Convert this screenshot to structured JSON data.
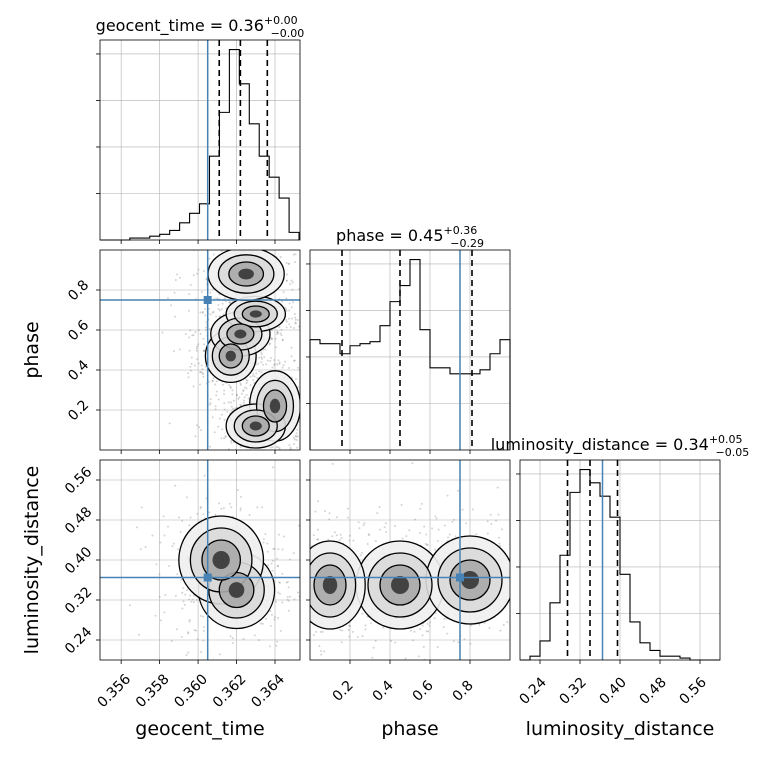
{
  "colors": {
    "truth": "#4682b4",
    "hist": "#000000",
    "grid": "#b0b0b0",
    "points": "#808080"
  },
  "chart_data": [
    {
      "type": "histogram",
      "parameter": "geocent_time",
      "title": {
        "prefix": "geocent_time = 0.36",
        "sup": "+0.00",
        "sub": "−0.00"
      },
      "xlim": [
        0.3549,
        0.3653
      ],
      "xticks": [
        0.356,
        0.358,
        0.36,
        0.362,
        0.364
      ],
      "xtick_labels": [
        "0.356",
        "0.358",
        "0.360",
        "0.362",
        "0.364"
      ],
      "xlabel": "geocent_time",
      "bin_edges": [
        0.3549,
        0.355418,
        0.355935,
        0.356453,
        0.35697,
        0.357488,
        0.358005,
        0.358523,
        0.35904,
        0.359558,
        0.360075,
        0.360593,
        0.36111,
        0.361628,
        0.362145,
        0.362663,
        0.36318,
        0.363698,
        0.364215,
        0.364733,
        0.36525
      ],
      "counts": [
        0,
        0,
        0,
        1,
        1,
        2,
        3,
        5,
        9,
        14,
        19,
        44,
        67,
        100,
        82,
        61,
        44,
        33,
        22,
        4
      ],
      "quantiles": [
        0.3611,
        0.3622,
        0.3636
      ],
      "truth": 0.3605
    },
    {
      "type": "histogram",
      "parameter": "phase",
      "title": {
        "prefix": "phase = 0.45",
        "sup": "+0.36",
        "sub": "−0.29"
      },
      "xlim": [
        0.0,
        1.0
      ],
      "xticks": [
        0.2,
        0.4,
        0.6,
        0.8
      ],
      "xtick_labels": [
        "0.2",
        "0.4",
        "0.6",
        "0.8"
      ],
      "xlabel": "phase",
      "bin_edges": [
        0.0,
        0.05,
        0.1,
        0.15,
        0.2,
        0.25,
        0.3,
        0.35,
        0.4,
        0.45,
        0.5,
        0.55,
        0.6,
        0.65,
        0.7,
        0.75,
        0.8,
        0.85,
        0.9,
        0.95,
        1.0
      ],
      "counts": [
        55,
        53,
        53,
        48,
        52,
        53,
        54,
        62,
        74,
        82,
        95,
        60,
        41,
        41,
        38,
        38,
        38,
        40,
        48,
        55
      ],
      "quantiles": [
        0.16,
        0.45,
        0.81
      ],
      "truth": 0.75
    },
    {
      "type": "histogram",
      "parameter": "luminosity_distance",
      "title": {
        "prefix": "luminosity_distance = 0.34",
        "sup": "+0.05",
        "sub": "−0.05"
      },
      "xlim": [
        0.2,
        0.6
      ],
      "xticks": [
        0.24,
        0.32,
        0.4,
        0.48,
        0.56
      ],
      "xtick_labels": [
        "0.24",
        "0.32",
        "0.40",
        "0.48",
        "0.56"
      ],
      "xlabel": "luminosity_distance",
      "bin_edges": [
        0.2,
        0.22,
        0.24,
        0.26,
        0.28,
        0.3,
        0.32,
        0.34,
        0.36,
        0.38,
        0.4,
        0.42,
        0.44,
        0.46,
        0.48,
        0.5,
        0.52,
        0.54,
        0.56,
        0.58,
        0.6
      ],
      "counts": [
        0,
        2,
        10,
        30,
        55,
        88,
        100,
        93,
        86,
        75,
        45,
        20,
        9,
        5,
        2,
        2,
        1,
        0,
        0,
        0
      ],
      "quantiles": [
        0.295,
        0.34,
        0.395
      ],
      "truth": 0.365
    },
    {
      "type": "scatter_density",
      "x_parameter": "geocent_time",
      "y_parameter": "phase",
      "xlim": [
        0.3549,
        0.3653
      ],
      "ylim": [
        0.0,
        1.0
      ],
      "ylabel": "phase",
      "yticks": [
        0.2,
        0.4,
        0.6,
        0.8
      ],
      "ytick_labels": [
        "0.2",
        "0.4",
        "0.6",
        "0.8"
      ],
      "truth": [
        0.3605,
        0.75
      ],
      "density_blobs": [
        {
          "x": 0.3617,
          "y": 0.47,
          "sx": 0.0006,
          "sy": 0.06
        },
        {
          "x": 0.3622,
          "y": 0.58,
          "sx": 0.0007,
          "sy": 0.05
        },
        {
          "x": 0.363,
          "y": 0.68,
          "sx": 0.0007,
          "sy": 0.04
        },
        {
          "x": 0.364,
          "y": 0.22,
          "sx": 0.0006,
          "sy": 0.08
        },
        {
          "x": 0.363,
          "y": 0.12,
          "sx": 0.0007,
          "sy": 0.05
        },
        {
          "x": 0.3625,
          "y": 0.88,
          "sx": 0.0009,
          "sy": 0.06
        }
      ]
    },
    {
      "type": "scatter_density",
      "x_parameter": "geocent_time",
      "y_parameter": "luminosity_distance",
      "xlim": [
        0.3549,
        0.3653
      ],
      "ylim": [
        0.2,
        0.6
      ],
      "ylabel": "luminosity_distance",
      "yticks": [
        0.24,
        0.32,
        0.4,
        0.48,
        0.56
      ],
      "ytick_labels": [
        "0.24",
        "0.32",
        "0.40",
        "0.48",
        "0.56"
      ],
      "truth": [
        0.3605,
        0.365
      ],
      "density_blobs": [
        {
          "x": 0.362,
          "y": 0.34,
          "sx": 0.0009,
          "sy": 0.035
        },
        {
          "x": 0.3612,
          "y": 0.4,
          "sx": 0.001,
          "sy": 0.04
        }
      ]
    },
    {
      "type": "scatter_density",
      "x_parameter": "phase",
      "y_parameter": "luminosity_distance",
      "xlim": [
        0.0,
        1.0
      ],
      "ylim": [
        0.2,
        0.6
      ],
      "truth": [
        0.75,
        0.365
      ],
      "density_blobs": [
        {
          "x": 0.45,
          "y": 0.35,
          "sx": 0.1,
          "sy": 0.04
        },
        {
          "x": 0.1,
          "y": 0.35,
          "sx": 0.08,
          "sy": 0.04
        },
        {
          "x": 0.8,
          "y": 0.36,
          "sx": 0.1,
          "sy": 0.04
        }
      ]
    }
  ]
}
